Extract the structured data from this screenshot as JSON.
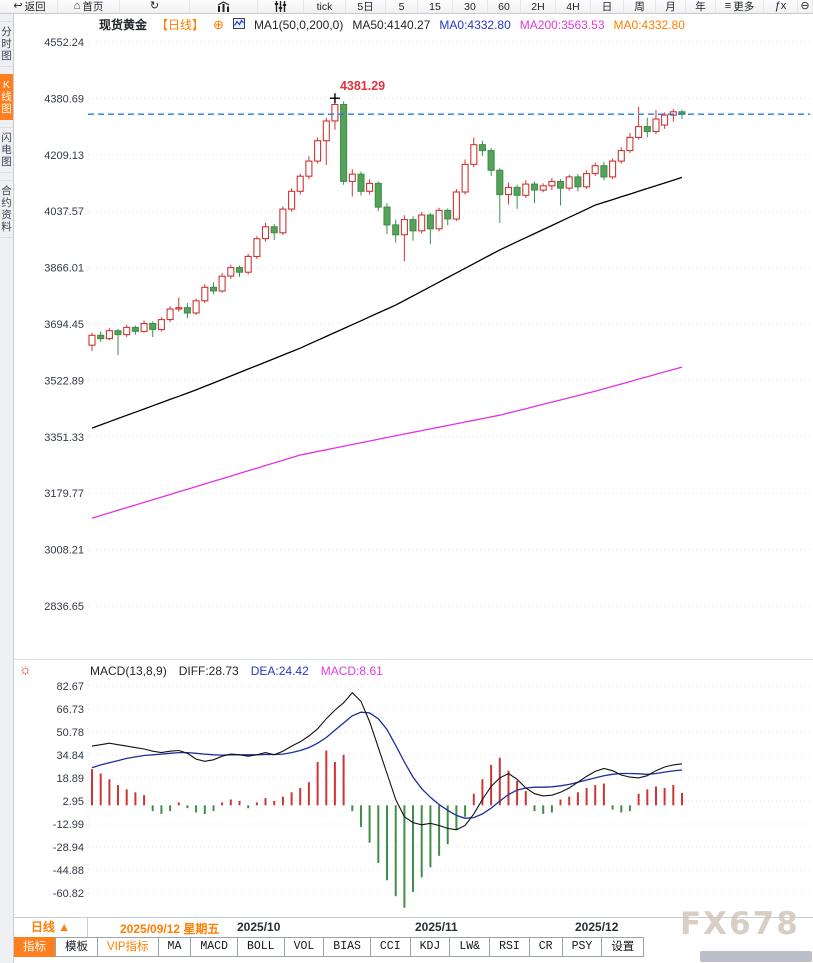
{
  "toolbar": {
    "items": [
      {
        "name": "back-button",
        "label": "返回",
        "icon": "back-arrow"
      },
      {
        "name": "home-button",
        "label": "首页",
        "icon": "home"
      },
      {
        "name": "refresh-button",
        "label": "",
        "icon": "refresh"
      },
      {
        "name": "chart-style-button",
        "label": "",
        "icon": "bar-chart"
      },
      {
        "name": "indicator-settings-button",
        "label": "",
        "icon": "sliders"
      },
      {
        "name": "timeframe-tick",
        "label": "tick"
      },
      {
        "name": "timeframe-5d",
        "label": "5日"
      },
      {
        "name": "timeframe-5m",
        "label": "5"
      },
      {
        "name": "timeframe-15m",
        "label": "15"
      },
      {
        "name": "timeframe-30m",
        "label": "30"
      },
      {
        "name": "timeframe-60m",
        "label": "60"
      },
      {
        "name": "timeframe-2h",
        "label": "2H"
      },
      {
        "name": "timeframe-4h",
        "label": "4H"
      },
      {
        "name": "timeframe-day",
        "label": "日"
      },
      {
        "name": "timeframe-week",
        "label": "周"
      },
      {
        "name": "timeframe-month",
        "label": "月"
      },
      {
        "name": "timeframe-year",
        "label": "年"
      },
      {
        "name": "more-button",
        "label": "更多",
        "icon": "menu"
      },
      {
        "name": "fx-button",
        "label": "",
        "icon": "fx"
      },
      {
        "name": "zoom-out-button",
        "label": "",
        "icon": "zoom-out"
      }
    ]
  },
  "sidebar": {
    "items": [
      {
        "name": "tab-time-share",
        "label": "分时图",
        "active": false
      },
      {
        "name": "tab-kline",
        "label": "K线图",
        "active": true
      },
      {
        "name": "tab-lightning",
        "label": "闪电图",
        "active": false
      },
      {
        "name": "tab-contract-info",
        "label": "合约资料",
        "active": false
      }
    ]
  },
  "chart_header": {
    "symbol": "现货黄金",
    "period": "【日线】",
    "add_icon": "⊕",
    "ma_settings": "MA1(50,0,200,0)",
    "ma50": "MA50:4140.27",
    "ma0_blue": "MA0:4332.80",
    "ma200": "MA200:3563.53",
    "ma0_orange": "MA0:4332.80"
  },
  "macd_header": {
    "title": "MACD(13,8,9)",
    "diff": "DIFF:28.73",
    "dea": "DEA:24.42",
    "macd": "MACD:8.61"
  },
  "annotations": {
    "peak_label": "4381.29",
    "last_price": 4332.8
  },
  "x_axis": {
    "labels": [
      {
        "text": "2025/09/12 星期五",
        "orange": true
      },
      {
        "text": "2025/10",
        "orange": false
      },
      {
        "text": "2025/11",
        "orange": false
      },
      {
        "text": "2025/12",
        "orange": false
      }
    ]
  },
  "period_selector": "日线 ▲",
  "bottom_tabs": {
    "items": [
      {
        "name": "tab-indicator",
        "label": "指标",
        "variant": "active"
      },
      {
        "name": "tab-template",
        "label": "模板",
        "variant": ""
      },
      {
        "name": "tab-vip-indicator",
        "label": "VIP指标",
        "variant": "vip"
      },
      {
        "name": "tab-ma",
        "label": "MA",
        "variant": "latin"
      },
      {
        "name": "tab-macd",
        "label": "MACD",
        "variant": "latin"
      },
      {
        "name": "tab-boll",
        "label": "BOLL",
        "variant": "latin"
      },
      {
        "name": "tab-vol",
        "label": "VOL",
        "variant": "latin"
      },
      {
        "name": "tab-bias",
        "label": "BIAS",
        "variant": "latin"
      },
      {
        "name": "tab-cci",
        "label": "CCI",
        "variant": "latin"
      },
      {
        "name": "tab-kdj",
        "label": "KDJ",
        "variant": "latin"
      },
      {
        "name": "tab-lw",
        "label": "LW&",
        "variant": "latin"
      },
      {
        "name": "tab-rsi",
        "label": "RSI",
        "variant": "latin"
      },
      {
        "name": "tab-cr",
        "label": "CR",
        "variant": "latin"
      },
      {
        "name": "tab-psy",
        "label": "PSY",
        "variant": "latin"
      },
      {
        "name": "tab-settings",
        "label": "设置",
        "variant": ""
      }
    ]
  },
  "watermark": "FX678",
  "colors": {
    "up": "#cf3434",
    "down_stroke": "#3f8f4a",
    "down_fill": "#55a25b",
    "ma50": "#000000",
    "ma200": "#e332e3",
    "dashed": "#1e7ce8",
    "diff": "#111111",
    "dea": "#1c2f9e",
    "accent": "#ff7e1e"
  },
  "chart_data": {
    "type": "candlestick",
    "title": "现货黄金 日线",
    "price_ticks": [
      4552.24,
      4380.69,
      4209.13,
      4037.57,
      3866.01,
      3694.45,
      3522.89,
      3351.33,
      3179.77,
      3008.21,
      2836.65
    ],
    "macd_ticks": [
      82.67,
      66.73,
      50.78,
      34.84,
      18.89,
      2.95,
      -12.99,
      -28.94,
      -44.88,
      -60.82
    ],
    "candles": [
      [
        3630,
        3668,
        3612,
        3660
      ],
      [
        3660,
        3672,
        3640,
        3650
      ],
      [
        3650,
        3682,
        3645,
        3674
      ],
      [
        3674,
        3680,
        3600,
        3662
      ],
      [
        3662,
        3692,
        3655,
        3684
      ],
      [
        3684,
        3690,
        3662,
        3672
      ],
      [
        3672,
        3705,
        3668,
        3696
      ],
      [
        3696,
        3702,
        3655,
        3678
      ],
      [
        3678,
        3715,
        3672,
        3708
      ],
      [
        3708,
        3748,
        3700,
        3740
      ],
      [
        3740,
        3775,
        3732,
        3744
      ],
      [
        3744,
        3758,
        3712,
        3728
      ],
      [
        3728,
        3772,
        3722,
        3765
      ],
      [
        3765,
        3815,
        3758,
        3806
      ],
      [
        3806,
        3822,
        3785,
        3795
      ],
      [
        3795,
        3850,
        3790,
        3840
      ],
      [
        3840,
        3875,
        3832,
        3866
      ],
      [
        3866,
        3872,
        3838,
        3852
      ],
      [
        3852,
        3908,
        3845,
        3900
      ],
      [
        3900,
        3962,
        3892,
        3954
      ],
      [
        3954,
        4002,
        3945,
        3990
      ],
      [
        3990,
        3998,
        3950,
        3972
      ],
      [
        3972,
        4052,
        3965,
        4044
      ],
      [
        4044,
        4108,
        4036,
        4098
      ],
      [
        4098,
        4152,
        4088,
        4144
      ],
      [
        4144,
        4205,
        4135,
        4190
      ],
      [
        4190,
        4262,
        4182,
        4252
      ],
      [
        4252,
        4322,
        4178,
        4312
      ],
      [
        4312,
        4381.29,
        4285,
        4362
      ],
      [
        4362,
        4372,
        4118,
        4128
      ],
      [
        4128,
        4165,
        4082,
        4150
      ],
      [
        4150,
        4158,
        4085,
        4098
      ],
      [
        4098,
        4135,
        4088,
        4122
      ],
      [
        4122,
        4128,
        4038,
        4050
      ],
      [
        4050,
        4062,
        3968,
        3996
      ],
      [
        3996,
        4012,
        3942,
        3966
      ],
      [
        3966,
        4025,
        3885,
        4012
      ],
      [
        4012,
        4022,
        3948,
        3978
      ],
      [
        3978,
        4035,
        3970,
        4026
      ],
      [
        4026,
        4032,
        3938,
        3984
      ],
      [
        3984,
        4048,
        3976,
        4040
      ],
      [
        4040,
        4046,
        3995,
        4014
      ],
      [
        4014,
        4105,
        4008,
        4096
      ],
      [
        4096,
        4195,
        4088,
        4180
      ],
      [
        4180,
        4262,
        4172,
        4240
      ],
      [
        4240,
        4252,
        4205,
        4222
      ],
      [
        4222,
        4230,
        4145,
        4162
      ],
      [
        4162,
        4168,
        4002,
        4088
      ],
      [
        4088,
        4125,
        4058,
        4110
      ],
      [
        4110,
        4118,
        4045,
        4086
      ],
      [
        4086,
        4132,
        4078,
        4120
      ],
      [
        4120,
        4128,
        4062,
        4102
      ],
      [
        4102,
        4122,
        4095,
        4115
      ],
      [
        4115,
        4138,
        4102,
        4128
      ],
      [
        4128,
        4135,
        4055,
        4108
      ],
      [
        4108,
        4148,
        4100,
        4142
      ],
      [
        4142,
        4150,
        4098,
        4112
      ],
      [
        4112,
        4162,
        4105,
        4152
      ],
      [
        4152,
        4185,
        4145,
        4176
      ],
      [
        4176,
        4188,
        4132,
        4142
      ],
      [
        4142,
        4198,
        4136,
        4190
      ],
      [
        4190,
        4232,
        4182,
        4222
      ],
      [
        4222,
        4275,
        4215,
        4262
      ],
      [
        4262,
        4355,
        4255,
        4295
      ],
      [
        4295,
        4322,
        4262,
        4280
      ],
      [
        4280,
        4345,
        4272,
        4318
      ],
      [
        4300,
        4338,
        4288,
        4330
      ],
      [
        4330,
        4348,
        4310,
        4340
      ],
      [
        4340,
        4346,
        4318,
        4332.8
      ]
    ],
    "ma50_knots": [
      [
        1,
        3378
      ],
      [
        13,
        3494
      ],
      [
        25,
        3621
      ],
      [
        36,
        3752
      ],
      [
        48,
        3920
      ],
      [
        59,
        4056
      ],
      [
        69,
        4140.27
      ]
    ],
    "ma200_knots": [
      [
        1,
        3104
      ],
      [
        13,
        3200
      ],
      [
        25,
        3296
      ],
      [
        37,
        3360
      ],
      [
        48,
        3417
      ],
      [
        59,
        3490
      ],
      [
        69,
        3563.53
      ]
    ],
    "macd": {
      "diff": [
        41,
        42,
        43,
        42,
        41,
        40,
        39,
        37.5,
        36.5,
        37.5,
        38,
        36,
        32,
        30.5,
        31.5,
        34,
        35.5,
        35,
        34,
        35,
        36.5,
        35,
        37.5,
        41,
        44,
        48,
        53,
        60,
        66,
        71,
        78,
        72,
        58,
        40,
        22,
        4,
        -8,
        -12,
        -13.5,
        -12.5,
        -14,
        -16,
        -17,
        -14,
        -6,
        4,
        13,
        19,
        22,
        18,
        12,
        8,
        6.5,
        7,
        9,
        12,
        16,
        20,
        23.5,
        25.5,
        24,
        21,
        19.5,
        19,
        20.5,
        24,
        26.5,
        28,
        28.73
      ],
      "dea": [
        26,
        28,
        29.5,
        31,
        32.5,
        33.5,
        34.5,
        35,
        35.5,
        36,
        36.5,
        36.5,
        36,
        35.5,
        35,
        34.8,
        35,
        35,
        35,
        35,
        35.2,
        35.2,
        35.5,
        36.5,
        38,
        40,
        43,
        47,
        52,
        57,
        62,
        64.5,
        64,
        60,
        52.5,
        41.5,
        30,
        19.5,
        11.5,
        5.5,
        0.5,
        -3.5,
        -7,
        -9,
        -8.5,
        -6,
        -2,
        3,
        7.5,
        10.5,
        12,
        12.5,
        12.5,
        12.8,
        13.5,
        14.5,
        16,
        17.5,
        19,
        20.5,
        21.5,
        22,
        22,
        21.8,
        21.5,
        22,
        23,
        23.8,
        24.42
      ],
      "hist": [
        25,
        22,
        18,
        14,
        11,
        9,
        7,
        -4,
        -6,
        -4,
        2,
        -2,
        -5,
        -6,
        -4,
        2,
        4,
        3,
        -2,
        2,
        5,
        3,
        6,
        9,
        12,
        16,
        30,
        38,
        30,
        35,
        -4,
        -15,
        -26,
        -40,
        -52,
        -63,
        -71,
        -60,
        -50,
        -43,
        -35,
        -27,
        -17,
        -8,
        8,
        18,
        28,
        33,
        24,
        17,
        10,
        -4,
        -6,
        -5,
        4,
        6,
        9,
        12,
        14,
        15,
        -3,
        -5,
        -4,
        8,
        11,
        13,
        12,
        14,
        8.61
      ]
    }
  }
}
